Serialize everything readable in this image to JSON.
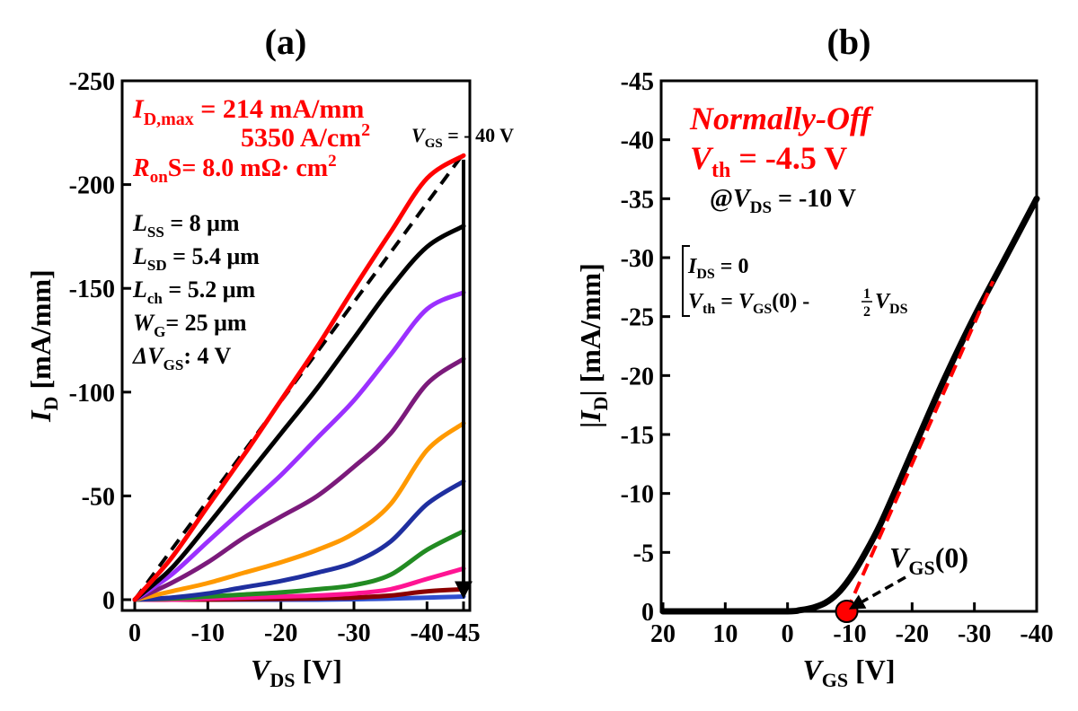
{
  "panel_a": {
    "label": "(a)",
    "annot": {
      "idmax_sym": "I",
      "idmax_sub": "D,max",
      "idmax_val": " = 214 mA/mm",
      "density": "5350 A/cm",
      "density_sup": "2",
      "ron_sym": "R",
      "ron_sub": "on",
      "ron_val": "S= 8.0 mΩ· cm",
      "ron_sup": "2",
      "vgs_sym": "V",
      "vgs_sub": "GS",
      "vgs_val": " = - 40 V"
    },
    "params": [
      {
        "sym": "L",
        "sub": "SS",
        "val": " = 8 μm"
      },
      {
        "sym": "L",
        "sub": "SD",
        "val": " = 5.4 μm"
      },
      {
        "sym": "L",
        "sub": "ch",
        "val": " = 5.2 μm"
      },
      {
        "sym": "W",
        "sub": "G",
        "val": "= 25 μm"
      },
      {
        "sym": "ΔV",
        "sub": "GS",
        "val": ": 4 V"
      }
    ],
    "xlabel": {
      "sym": "V",
      "sub": "DS",
      "unit": " [V]"
    },
    "ylabel": {
      "sym": "I",
      "sub": "D",
      "unit": " [mA/mm]"
    }
  },
  "panel_b": {
    "label": "(b)",
    "annot": {
      "title": "Normally-Off",
      "vth_sym": "V",
      "vth_sub": "th",
      "vth_val": " = -4.5 V",
      "at": "@",
      "vds_sym": "V",
      "vds_sub": "DS",
      "vds_val": " = -10 V"
    },
    "equations": {
      "line1_sym": "I",
      "line1_sub": "DS",
      "line1_val": " = 0",
      "line2_sym": "V",
      "line2_sub": "th",
      "line2_mid": " = ",
      "line2_sym2": "V",
      "line2_sub2": "GS",
      "line2_mid2": "(0) - ",
      "frac_num": "1",
      "frac_den": "2",
      "line2_sym3": "V",
      "line2_sub3": "DS"
    },
    "marker": {
      "sym": "V",
      "sub": "GS",
      "val": "(0)"
    },
    "xlabel": {
      "sym": "V",
      "sub": "GS",
      "unit": " [V]"
    },
    "ylabel": {
      "pre": "|",
      "sym": "I",
      "sub": "D",
      "post": "| [mA/mm]"
    }
  },
  "colors": {
    "accent_red": "#ff0000",
    "axis": "#000000"
  },
  "chart_data": [
    {
      "type": "line",
      "id": "output_characteristics",
      "xlim": [
        0,
        -45
      ],
      "ylim": [
        0,
        -250
      ],
      "x_ticks": [
        0,
        -10,
        -20,
        -30,
        -40,
        -45
      ],
      "x_tick_labels": [
        "0",
        "-10",
        "-20",
        "-30",
        "-40",
        "-45"
      ],
      "y_ticks": [
        0,
        -50,
        -100,
        -150,
        -200,
        -250
      ],
      "y_tick_labels": [
        "0",
        "-50",
        "-100",
        "-150",
        "-200",
        "-250"
      ],
      "grid": false,
      "x": [
        0,
        -5,
        -10,
        -15,
        -20,
        -25,
        -30,
        -35,
        -40,
        -45
      ],
      "series": [
        {
          "color": "#ff0000",
          "values": [
            0,
            -20,
            -45,
            -70,
            -96,
            -122,
            -150,
            -177,
            -203,
            -214
          ]
        },
        {
          "color": "#000000",
          "values": [
            0,
            -15,
            -36,
            -58,
            -80,
            -102,
            -126,
            -150,
            -170,
            -180
          ]
        },
        {
          "color": "#9b30ff",
          "values": [
            0,
            -12,
            -28,
            -44,
            -60,
            -78,
            -96,
            -118,
            -140,
            -148
          ]
        },
        {
          "color": "#7b1a7b",
          "values": [
            0,
            -8,
            -18,
            -30,
            -40,
            -50,
            -64,
            -80,
            -104,
            -116
          ]
        },
        {
          "color": "#ff9900",
          "values": [
            0,
            -4,
            -8,
            -13,
            -18,
            -24,
            -32,
            -46,
            -72,
            -85
          ]
        },
        {
          "color": "#1f2f9f",
          "values": [
            0,
            -1,
            -3,
            -6,
            -9,
            -13,
            -18,
            -28,
            -46,
            -57
          ]
        },
        {
          "color": "#228b22",
          "values": [
            0,
            -0.5,
            -1.5,
            -2.5,
            -3.5,
            -5,
            -7,
            -12,
            -24,
            -33
          ]
        },
        {
          "color": "#ff1493",
          "values": [
            0,
            0,
            -0.5,
            -1,
            -1.5,
            -2,
            -3,
            -5,
            -10,
            -15
          ]
        },
        {
          "color": "#8b0000",
          "values": [
            0,
            0,
            0,
            -0.2,
            -0.4,
            -0.6,
            -1,
            -2,
            -4,
            -5
          ]
        },
        {
          "color": "#2f4fcf",
          "values": [
            0,
            0,
            0,
            0,
            0,
            0,
            -0.2,
            -0.5,
            -1,
            -1.5
          ]
        }
      ],
      "reference_line": {
        "style": "dashed",
        "color": "#000000",
        "x": [
          0,
          -45
        ],
        "y": [
          0,
          -215
        ]
      },
      "sweep_arrow": {
        "x": -45,
        "from": -212,
        "to": -2
      }
    },
    {
      "type": "line",
      "id": "transfer_characteristics",
      "xlim": [
        20,
        -40
      ],
      "ylim": [
        0,
        -45
      ],
      "x_ticks": [
        20,
        10,
        0,
        -10,
        -20,
        -30,
        -40
      ],
      "x_tick_labels": [
        "20",
        "10",
        "0",
        "-10",
        "-20",
        "-30",
        "-40"
      ],
      "y_ticks": [
        0,
        -5,
        -10,
        -15,
        -20,
        -25,
        -30,
        -35,
        -40,
        -45
      ],
      "y_tick_labels": [
        "0",
        "-5",
        "-10",
        "-15",
        "-20",
        "-25",
        "-30",
        "-35",
        "-40",
        "-45"
      ],
      "grid": false,
      "series": [
        {
          "color": "#000000",
          "x": [
            20,
            10,
            0,
            -2,
            -4,
            -6,
            -8,
            -10,
            -12,
            -15,
            -20,
            -25,
            -30,
            -35,
            -40
          ],
          "y": [
            0,
            0,
            0,
            -0.1,
            -0.3,
            -0.7,
            -1.5,
            -2.8,
            -4.5,
            -7.5,
            -13.5,
            -19.5,
            -25,
            -30,
            -35
          ]
        }
      ],
      "fit_line": {
        "style": "dashed",
        "color": "#ff0000",
        "x": [
          -9.5,
          -33
        ],
        "y": [
          0,
          -28
        ]
      },
      "vgs0_point": {
        "x": -9.5,
        "y": 0,
        "color": "#ff0000"
      }
    }
  ]
}
